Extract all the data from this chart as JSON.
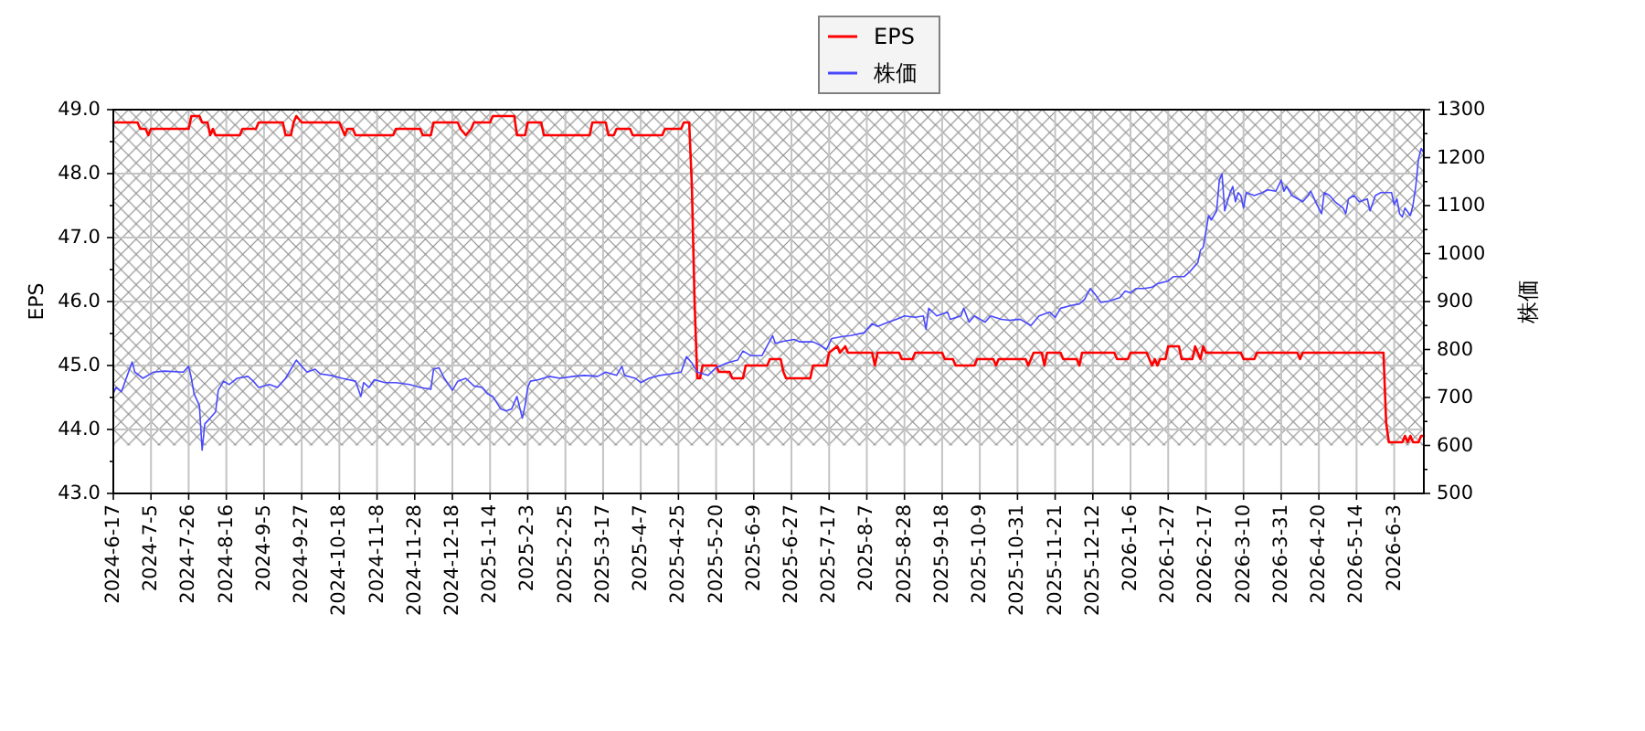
{
  "chart_data": {
    "type": "line",
    "ylabel": "EPS",
    "y2label": "株価",
    "grid": true,
    "legend": "top",
    "categories": [
      "2024-6-17",
      null,
      null,
      null,
      null,
      null,
      null,
      null,
      null,
      null,
      null,
      null,
      null,
      null,
      "2024-7-5",
      null,
      null,
      null,
      null,
      null,
      null,
      null,
      null,
      null,
      null,
      null,
      null,
      null,
      "2024-7-26",
      null,
      null,
      null,
      null,
      null,
      null,
      null,
      null,
      null,
      null,
      null,
      null,
      null,
      "2024-8-16",
      null,
      null,
      null,
      null,
      null,
      null,
      null,
      null,
      null,
      null,
      null,
      null,
      null,
      "2024-9-5",
      null,
      null,
      null,
      null,
      null,
      null,
      null,
      null,
      null,
      null,
      null,
      null,
      null,
      "2024-9-27",
      null,
      null,
      null,
      null,
      null,
      null,
      null,
      null,
      null,
      null,
      null,
      null,
      null,
      "2024-10-18",
      null,
      null,
      null,
      null,
      null,
      null,
      null,
      null,
      null,
      null,
      null,
      null,
      null,
      "2024-11-8",
      null,
      null,
      null,
      null,
      null,
      null,
      null,
      null,
      null,
      null,
      null,
      null,
      null,
      "2024-11-28",
      null,
      null,
      null,
      null,
      null,
      null,
      null,
      null,
      null,
      null,
      null,
      null,
      null,
      "2024-12-18",
      null,
      null,
      null,
      null,
      null,
      null,
      null,
      null,
      null,
      null,
      null,
      null,
      null,
      "2025-1-14",
      null,
      null,
      null,
      null,
      null,
      null,
      null,
      null,
      null,
      null,
      null,
      null,
      null,
      "2025-2-3",
      null,
      null,
      null,
      null,
      null,
      null,
      null,
      null,
      null,
      null,
      null,
      null,
      null,
      "2025-2-25",
      null,
      null,
      null,
      null,
      null,
      null,
      null,
      null,
      null,
      null,
      null,
      null,
      null,
      "2025-3-17",
      null,
      null,
      null,
      null,
      null,
      null,
      null,
      null,
      null,
      null,
      null,
      null,
      null,
      "2025-4-7",
      null,
      null,
      null,
      null,
      null,
      null,
      null,
      null,
      null,
      null,
      null,
      null,
      null,
      "2025-4-25",
      null,
      null,
      null,
      null,
      null,
      null,
      null,
      null,
      null,
      null,
      null,
      null,
      null,
      "2025-5-20",
      null,
      null,
      null,
      null,
      null,
      null,
      null,
      null,
      null,
      null,
      null,
      null,
      null,
      "2025-6-9",
      null,
      null,
      null,
      null,
      null,
      null,
      null,
      null,
      null,
      null,
      null,
      null,
      null,
      "2025-6-27",
      null,
      null,
      null,
      null,
      null,
      null,
      null,
      null,
      null,
      null,
      null,
      null,
      null,
      "2025-7-17",
      null,
      null,
      null,
      null,
      null,
      null,
      null,
      null,
      null,
      null,
      null,
      null,
      null,
      "2025-8-7",
      null,
      null,
      null,
      null,
      null,
      null,
      null,
      null,
      null,
      null,
      null,
      null,
      null,
      "2025-8-28",
      null,
      null,
      null,
      null,
      null,
      null,
      null,
      null,
      null,
      null,
      null,
      null,
      null,
      "2025-9-18",
      null,
      null,
      null,
      null,
      null,
      null,
      null,
      null,
      null,
      null,
      null,
      null,
      null,
      "2025-10-9",
      null,
      null,
      null,
      null,
      null,
      null,
      null,
      null,
      null,
      null,
      null,
      null,
      null,
      "2025-10-31",
      null,
      null,
      null,
      null,
      null,
      null,
      null,
      null,
      null,
      null,
      null,
      null,
      null,
      "2025-11-21",
      null,
      null,
      null,
      null,
      null,
      null,
      null,
      null,
      null,
      null,
      null,
      null,
      null,
      "2025-12-12",
      null,
      null,
      null,
      null,
      null,
      null,
      null,
      null,
      null,
      null,
      null,
      null,
      null,
      "2026-1-6",
      null,
      null,
      null,
      null,
      null,
      null,
      null,
      null,
      null,
      null,
      null,
      null,
      null,
      "2026-1-27",
      null,
      null,
      null,
      null,
      null,
      null,
      null,
      null,
      null,
      null,
      null,
      null,
      null,
      "2026-2-17",
      null,
      null,
      null,
      null,
      null,
      null,
      null,
      null,
      null,
      null,
      null,
      null,
      null,
      "2026-3-10",
      null,
      null,
      null,
      null,
      null,
      null,
      null,
      null,
      null,
      null,
      null,
      null,
      null,
      "2026-3-31",
      null,
      null,
      null,
      null,
      null,
      null,
      null,
      null,
      null,
      null,
      null,
      null,
      null,
      "2026-4-20",
      null,
      null,
      null,
      null,
      null,
      null,
      null,
      null,
      null,
      null,
      null,
      null,
      null,
      "2026-5-14",
      null,
      null,
      null,
      null,
      null,
      null,
      null,
      null,
      null,
      null,
      null,
      null,
      null,
      "2026-6-3",
      null,
      null,
      null,
      null,
      null,
      null,
      null,
      null,
      null,
      null,
      null
    ],
    "ylim": [
      43,
      49
    ],
    "yticks": [
      {
        "value": 43,
        "label": "43.0"
      },
      {
        "value": 43.5,
        "label": null
      },
      {
        "value": 44,
        "label": "44.0"
      },
      {
        "value": 44.5,
        "label": null
      },
      {
        "value": 45,
        "label": "45.0"
      },
      {
        "value": 45.5,
        "label": null
      },
      {
        "value": 46,
        "label": "46.0"
      },
      {
        "value": 46.5,
        "label": null
      },
      {
        "value": 47,
        "label": "47.0"
      },
      {
        "value": 47.5,
        "label": null
      },
      {
        "value": 48,
        "label": "48.0"
      },
      {
        "value": 48.5,
        "label": null
      },
      {
        "value": 49,
        "label": "49.0"
      }
    ],
    "y2lim": [
      500,
      1300
    ],
    "y2ticks": [
      500,
      {
        "value": 550,
        "label": null
      },
      600,
      {
        "value": 650,
        "label": null
      },
      700,
      {
        "value": 750,
        "label": null
      },
      800,
      {
        "value": 850,
        "label": null
      },
      900,
      {
        "value": 950,
        "label": null
      },
      1000,
      {
        "value": 1050,
        "label": null
      },
      1100,
      {
        "value": 1150,
        "label": null
      },
      1200,
      {
        "value": 1250,
        "label": null
      },
      1300
    ],
    "bands": [
      {
        "axis": "y2",
        "from": 600,
        "to": 1300,
        "color": "#8c8c8c"
      }
    ],
    "series": [
      {
        "name": "EPS",
        "color": "#ff0000",
        "values": [
          48.8,
          null,
          null,
          null,
          null,
          null,
          null,
          null,
          null,
          48.8,
          48.7,
          null,
          48.7,
          48.6,
          48.7,
          null,
          null,
          null,
          null,
          null,
          null,
          null,
          null,
          null,
          null,
          null,
          null,
          null,
          48.7,
          48.9,
          null,
          null,
          48.9,
          48.8,
          null,
          48.8,
          48.6,
          48.7,
          48.6,
          null,
          null,
          null,
          null,
          null,
          null,
          null,
          null,
          48.6,
          48.7,
          null,
          null,
          null,
          null,
          48.7,
          48.8,
          null,
          null,
          null,
          null,
          null,
          null,
          null,
          null,
          48.8,
          48.6,
          null,
          48.6,
          48.8,
          48.9,
          null,
          48.8,
          null,
          null,
          null,
          null,
          null,
          null,
          null,
          null,
          null,
          null,
          null,
          null,
          null,
          48.8,
          48.7,
          48.6,
          48.7,
          null,
          48.7,
          48.6,
          null,
          null,
          null,
          null,
          null,
          null,
          null,
          null,
          null,
          null,
          null,
          null,
          null,
          48.6,
          48.7,
          null,
          null,
          null,
          null,
          null,
          null,
          null,
          null,
          48.7,
          48.6,
          null,
          null,
          48.6,
          48.8,
          null,
          null,
          null,
          null,
          null,
          null,
          null,
          null,
          48.8,
          48.7,
          null,
          48.6,
          null,
          48.7,
          48.8,
          null,
          null,
          null,
          null,
          null,
          48.8,
          48.9,
          null,
          null,
          null,
          null,
          null,
          null,
          null,
          48.9,
          48.6,
          null,
          null,
          48.6,
          48.8,
          null,
          null,
          null,
          null,
          48.8,
          48.6,
          null,
          null,
          null,
          null,
          null,
          null,
          null,
          null,
          null,
          null,
          null,
          null,
          null,
          null,
          null,
          null,
          48.6,
          48.8,
          null,
          null,
          null,
          null,
          48.8,
          48.6,
          null,
          48.6,
          48.7,
          null,
          null,
          null,
          null,
          48.7,
          48.6,
          null,
          null,
          null,
          null,
          null,
          null,
          null,
          null,
          null,
          null,
          48.6,
          48.7,
          null,
          null,
          null,
          null,
          null,
          48.7,
          48.8,
          null,
          48.8,
          47.8,
          46.0,
          44.8,
          44.8,
          45.0,
          null,
          null,
          null,
          null,
          45.0,
          44.9,
          null,
          null,
          null,
          44.9,
          44.8,
          null,
          null,
          null,
          44.8,
          45.0,
          null,
          null,
          null,
          null,
          null,
          null,
          null,
          45.0,
          45.1,
          null,
          null,
          null,
          45.1,
          44.9,
          44.8,
          null,
          null,
          null,
          null,
          null,
          null,
          null,
          null,
          44.8,
          45.0,
          null,
          null,
          null,
          null,
          45.0,
          45.2,
          null,
          null,
          45.3,
          45.2,
          null,
          45.3,
          45.2,
          null,
          null,
          null,
          null,
          null,
          null,
          null,
          null,
          45.2,
          45.0,
          45.2,
          null,
          null,
          null,
          null,
          null,
          null,
          null,
          45.2,
          45.1,
          null,
          null,
          null,
          45.1,
          45.2,
          null,
          null,
          null,
          null,
          null,
          null,
          null,
          null,
          null,
          45.2,
          45.1,
          null,
          null,
          45.1,
          45.0,
          null,
          null,
          null,
          null,
          null,
          null,
          45.0,
          45.1,
          null,
          null,
          null,
          null,
          null,
          45.1,
          45.0,
          45.1,
          null,
          null,
          null,
          null,
          null,
          null,
          null,
          null,
          null,
          45.1,
          45.0,
          null,
          45.2,
          null,
          null,
          45.2,
          45.0,
          45.2,
          null,
          null,
          null,
          null,
          45.2,
          45.1,
          null,
          null,
          null,
          null,
          45.1,
          45.0,
          45.2,
          null,
          null,
          null,
          null,
          null,
          null,
          null,
          null,
          null,
          null,
          null,
          45.2,
          45.1,
          null,
          null,
          null,
          45.1,
          45.2,
          null,
          null,
          null,
          null,
          null,
          45.2,
          45.1,
          45.0,
          45.1,
          45.0,
          45.1,
          null,
          45.1,
          45.3,
          null,
          null,
          null,
          45.3,
          45.1,
          null,
          null,
          null,
          45.1,
          45.3,
          null,
          45.1,
          45.3,
          45.2,
          null,
          null,
          null,
          null,
          null,
          null,
          null,
          null,
          null,
          null,
          null,
          null,
          45.2,
          45.1,
          null,
          null,
          null,
          45.1,
          45.2,
          null,
          null,
          null,
          null,
          null,
          null,
          null,
          null,
          null,
          null,
          null,
          null,
          null,
          null,
          45.2,
          45.1,
          45.2,
          null,
          null,
          null,
          null,
          null,
          null,
          null,
          null,
          null,
          null,
          null,
          null,
          null,
          null,
          null,
          null,
          null,
          null,
          null,
          null,
          null,
          null,
          null,
          null,
          null,
          null,
          null,
          null,
          null,
          45.2,
          44.1,
          43.8,
          null,
          null,
          null,
          null,
          43.8,
          43.9,
          43.8,
          43.9,
          43.8,
          null,
          43.8,
          43.9,
          43.9
        ]
      },
      {
        "name": "株価",
        "color": "#4848ff",
        "axis": "y2",
        "values": [
          708,
          721,
          null,
          712,
          null,
          null,
          null,
          774,
          753,
          null,
          null,
          740,
          null,
          null,
          null,
          753,
          null,
          null,
          null,
          755,
          null,
          null,
          null,
          null,
          null,
          null,
          753,
          null,
          765,
          740,
          708,
          null,
          683,
          590,
          645,
          null,
          657,
          null,
          670,
          715,
          null,
          734,
          null,
          727,
          null,
          null,
          740,
          null,
          null,
          null,
          744,
          null,
          734,
          null,
          721,
          null,
          null,
          null,
          727,
          null,
          null,
          721,
          null,
          null,
          740,
          null,
          null,
          null,
          778,
          null,
          765,
          null,
          753,
          null,
          null,
          759,
          null,
          749,
          null,
          null,
          null,
          746,
          null,
          null,
          null,
          740,
          null,
          null,
          null,
          null,
          734,
          null,
          702,
          731,
          null,
          721,
          null,
          737,
          null,
          null,
          null,
          731,
          null,
          null,
          null,
          731,
          null,
          null,
          null,
          null,
          727,
          null,
          null,
          null,
          721,
          null,
          null,
          null,
          717,
          759,
          null,
          762,
          null,
          740,
          null,
          null,
          715,
          null,
          734,
          null,
          null,
          740,
          null,
          null,
          724,
          null,
          null,
          721,
          null,
          708,
          null,
          702,
          null,
          null,
          676,
          null,
          672,
          null,
          676,
          null,
          702,
          null,
          657,
          683,
          721,
          734,
          null,
          null,
          737,
          null,
          null,
          null,
          744,
          null,
          null,
          null,
          740,
          null,
          null,
          null,
          null,
          744,
          null,
          null,
          null,
          746,
          null,
          null,
          null,
          null,
          744,
          null,
          null,
          753,
          null,
          null,
          null,
          746,
          null,
          765,
          746,
          null,
          null,
          null,
          740,
          null,
          731,
          null,
          null,
          740,
          null,
          null,
          null,
          746,
          null,
          null,
          null,
          749,
          null,
          null,
          null,
          753,
          null,
          785,
          null,
          772,
          null,
          753,
          null,
          null,
          null,
          746,
          null,
          null,
          762,
          null,
          null,
          null,
          772,
          null,
          null,
          null,
          778,
          null,
          797,
          null,
          null,
          787,
          null,
          null,
          null,
          787,
          null,
          null,
          null,
          829,
          813,
          null,
          null,
          817,
          null,
          null,
          null,
          821,
          null,
          816,
          null,
          null,
          null,
          null,
          816,
          null,
          null,
          808,
          null,
          800,
          null,
          823,
          null,
          null,
          null,
          827,
          null,
          null,
          829,
          null,
          null,
          null,
          null,
          835,
          null,
          null,
          854,
          null,
          848,
          null,
          null,
          null,
          857,
          null,
          null,
          863,
          null,
          null,
          870,
          null,
          null,
          null,
          867,
          null,
          null,
          870,
          842,
          886,
          null,
          null,
          870,
          null,
          null,
          null,
          878,
          863,
          null,
          null,
          null,
          870,
          886,
          null,
          857,
          null,
          870,
          null,
          null,
          null,
          857,
          null,
          870,
          null,
          null,
          null,
          863,
          null,
          null,
          861,
          null,
          null,
          null,
          863,
          null,
          null,
          null,
          850,
          null,
          null,
          870,
          null,
          null,
          null,
          878,
          null,
          867,
          null,
          886,
          null,
          null,
          null,
          892,
          null,
          null,
          895,
          null,
          905,
          null,
          927,
          null,
          914,
          null,
          898,
          null,
          null,
          901,
          null,
          null,
          null,
          908,
          null,
          922,
          null,
          918,
          null,
          927,
          null,
          null,
          927,
          null,
          null,
          930,
          null,
          937,
          null,
          null,
          null,
          943,
          null,
          952,
          null,
          null,
          null,
          952,
          null,
          962,
          null,
          975,
          981,
          1007,
          1013,
          1045,
          1079,
          1070,
          null,
          1089,
          1153,
          1166,
          1089,
          null,
          1127,
          1140,
          1108,
          1127,
          1121,
          1095,
          1127,
          null,
          null,
          1121,
          null,
          null,
          1127,
          null,
          1133,
          null,
          null,
          1130,
          null,
          1153,
          1130,
          1140,
          null,
          1121,
          null,
          null,
          null,
          1108,
          null,
          1121,
          1130,
          null,
          1105,
          null,
          1083,
          1127,
          null,
          1121,
          null,
          1108,
          null,
          null,
          1095,
          1083,
          1114,
          null,
          1121,
          null,
          1108,
          null,
          null,
          1114,
          1089,
          null,
          1121,
          null,
          1127,
          null,
          null,
          null,
          1127,
          1102,
          1114,
          1083,
          1076,
          1095,
          null,
          1079,
          1102,
          1140,
          1197,
          1219,
          1210
        ]
      }
    ]
  }
}
